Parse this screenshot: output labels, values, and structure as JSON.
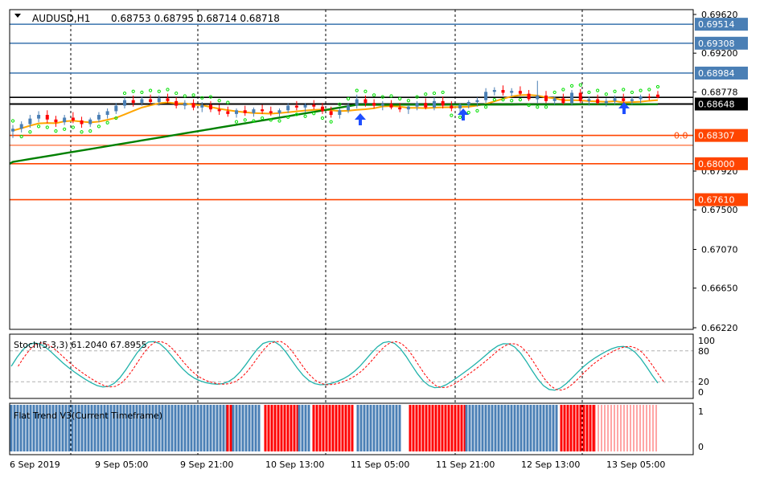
{
  "chart_data": [
    {
      "type": "candlestick",
      "symbol": "AUDUSD,H1",
      "ohlc_header": "0.68753 0.68795 0.68714 0.68718",
      "y_ticks": [
        "0.69620",
        "0.69200",
        "0.68778",
        "0.67920",
        "0.67500",
        "0.67070",
        "0.66650",
        "0.66220"
      ],
      "ylim": [
        0.662,
        0.6966
      ],
      "x_ticks": [
        "6 Sep 2019",
        "9 Sep 05:00",
        "9 Sep 21:00",
        "10 Sep 13:00",
        "11 Sep 05:00",
        "11 Sep 21:00",
        "12 Sep 13:00",
        "13 Sep 05:00"
      ],
      "levels": [
        {
          "value": "0.69514",
          "price": 0.69514,
          "color": "#4a7fb5"
        },
        {
          "value": "0.69308",
          "price": 0.69308,
          "color": "#4a7fb5"
        },
        {
          "value": "0.68984",
          "price": 0.68984,
          "color": "#4a7fb5"
        },
        {
          "value": "0.68648",
          "price": 0.68648,
          "color": "#000000"
        },
        {
          "value": "0.68307",
          "price": 0.68307,
          "color": "#ff4500"
        },
        {
          "value": "0.68000",
          "price": 0.68,
          "color": "#ff4500"
        },
        {
          "value": "0.67610",
          "price": 0.6761,
          "color": "#ff4500"
        }
      ],
      "fib_label": "0.0",
      "candles": [
        [
          0.6835,
          0.6842,
          0.6828,
          0.6838
        ],
        [
          0.6838,
          0.6846,
          0.6834,
          0.6843
        ],
        [
          0.6843,
          0.6853,
          0.6839,
          0.6849
        ],
        [
          0.6849,
          0.6857,
          0.6845,
          0.6853
        ],
        [
          0.6853,
          0.6858,
          0.6844,
          0.6848
        ],
        [
          0.6848,
          0.6852,
          0.684,
          0.6845
        ],
        [
          0.6845,
          0.6853,
          0.6842,
          0.685
        ],
        [
          0.685,
          0.6856,
          0.6844,
          0.6847
        ],
        [
          0.6847,
          0.6851,
          0.6839,
          0.6843
        ],
        [
          0.6843,
          0.685,
          0.684,
          0.6848
        ],
        [
          0.6848,
          0.6856,
          0.6845,
          0.6853
        ],
        [
          0.6853,
          0.686,
          0.6849,
          0.6857
        ],
        [
          0.6857,
          0.6866,
          0.6854,
          0.6863
        ],
        [
          0.6863,
          0.6872,
          0.686,
          0.6869
        ],
        [
          0.6869,
          0.6874,
          0.6862,
          0.6866
        ],
        [
          0.6866,
          0.6873,
          0.6863,
          0.687
        ],
        [
          0.687,
          0.6875,
          0.6864,
          0.6867
        ],
        [
          0.6867,
          0.6874,
          0.6863,
          0.6871
        ],
        [
          0.6871,
          0.6876,
          0.6866,
          0.6868
        ],
        [
          0.6868,
          0.6872,
          0.686,
          0.6863
        ],
        [
          0.6863,
          0.6869,
          0.6859,
          0.6866
        ],
        [
          0.6866,
          0.687,
          0.6858,
          0.6861
        ],
        [
          0.6861,
          0.6867,
          0.6856,
          0.6864
        ],
        [
          0.6864,
          0.6868,
          0.6856,
          0.6859
        ],
        [
          0.6859,
          0.6864,
          0.6853,
          0.6857
        ],
        [
          0.6857,
          0.6862,
          0.6851,
          0.6854
        ],
        [
          0.6854,
          0.686,
          0.685,
          0.6858
        ],
        [
          0.6858,
          0.6863,
          0.6852,
          0.6855
        ],
        [
          0.6855,
          0.6861,
          0.6851,
          0.6859
        ],
        [
          0.6859,
          0.6864,
          0.6854,
          0.6857
        ],
        [
          0.6857,
          0.6862,
          0.6852,
          0.6855
        ],
        [
          0.6855,
          0.686,
          0.6851,
          0.6858
        ],
        [
          0.6858,
          0.6866,
          0.6855,
          0.6863
        ],
        [
          0.6863,
          0.6868,
          0.6858,
          0.6861
        ],
        [
          0.6861,
          0.6866,
          0.6856,
          0.6864
        ],
        [
          0.6864,
          0.6869,
          0.6859,
          0.6862
        ],
        [
          0.6862,
          0.6866,
          0.6854,
          0.6857
        ],
        [
          0.6857,
          0.6862,
          0.685,
          0.6853
        ],
        [
          0.6853,
          0.686,
          0.6849,
          0.6858
        ],
        [
          0.6858,
          0.6866,
          0.6855,
          0.6863
        ],
        [
          0.6863,
          0.6875,
          0.686,
          0.687
        ],
        [
          0.687,
          0.6874,
          0.6862,
          0.6866
        ],
        [
          0.6866,
          0.687,
          0.686,
          0.6863
        ],
        [
          0.6863,
          0.6868,
          0.6858,
          0.6865
        ],
        [
          0.6865,
          0.6869,
          0.6859,
          0.6861
        ],
        [
          0.6861,
          0.6866,
          0.6856,
          0.6859
        ],
        [
          0.6859,
          0.6864,
          0.6854,
          0.6862
        ],
        [
          0.6862,
          0.6868,
          0.6858,
          0.6866
        ],
        [
          0.6866,
          0.6871,
          0.6859,
          0.6861
        ],
        [
          0.6861,
          0.6872,
          0.6858,
          0.6868
        ],
        [
          0.6868,
          0.6873,
          0.686,
          0.6863
        ],
        [
          0.6863,
          0.6868,
          0.6857,
          0.686
        ],
        [
          0.686,
          0.6866,
          0.6855,
          0.6864
        ],
        [
          0.6864,
          0.6869,
          0.686,
          0.6867
        ],
        [
          0.6867,
          0.6872,
          0.6862,
          0.6869
        ],
        [
          0.6869,
          0.6882,
          0.6866,
          0.6878
        ],
        [
          0.6878,
          0.6883,
          0.6874,
          0.688
        ],
        [
          0.688,
          0.6885,
          0.6874,
          0.6877
        ],
        [
          0.6877,
          0.6882,
          0.6873,
          0.6879
        ],
        [
          0.6879,
          0.6884,
          0.6874,
          0.6876
        ],
        [
          0.6876,
          0.688,
          0.6868,
          0.687
        ],
        [
          0.687,
          0.689,
          0.6866,
          0.6874
        ],
        [
          0.6874,
          0.6879,
          0.6866,
          0.6868
        ],
        [
          0.6868,
          0.6873,
          0.6864,
          0.6871
        ],
        [
          0.6871,
          0.6876,
          0.6864,
          0.6866
        ],
        [
          0.6866,
          0.688,
          0.6863,
          0.6877
        ],
        [
          0.6877,
          0.6881,
          0.6866,
          0.6868
        ],
        [
          0.6868,
          0.6873,
          0.6863,
          0.687
        ],
        [
          0.687,
          0.6875,
          0.6864,
          0.6866
        ],
        [
          0.6866,
          0.6871,
          0.6862,
          0.6868
        ],
        [
          0.6868,
          0.6874,
          0.6864,
          0.6871
        ],
        [
          0.6871,
          0.6876,
          0.6866,
          0.6868
        ],
        [
          0.6868,
          0.6873,
          0.6864,
          0.687
        ],
        [
          0.687,
          0.6875,
          0.6866,
          0.6873
        ],
        [
          0.6873,
          0.6876,
          0.6869,
          0.6872
        ],
        [
          0.6875,
          0.6879,
          0.6871,
          0.6872
        ]
      ],
      "panels": [
        {
          "name": "stochastic",
          "label": "Stoch(5,3,3) 61.2040 67.8955",
          "y_ticks": [
            "100",
            "80",
            "20",
            "0"
          ],
          "levels": [
            80,
            20
          ]
        },
        {
          "name": "flat-trend",
          "label": "Flat Trend V3(Current Timeframe)",
          "y_ticks": [
            "1",
            "0"
          ]
        }
      ],
      "colors": {
        "up": "#4a7fb5",
        "down": "#ff0000",
        "ma_fast": "#ffa500",
        "ma_slow": "#008000",
        "psar": "#00e000",
        "stoch_main": "#20b2aa",
        "stoch_signal": "#ff0000",
        "bar_blue": "#4a7fb5",
        "bar_red": "#ff0000"
      }
    }
  ]
}
